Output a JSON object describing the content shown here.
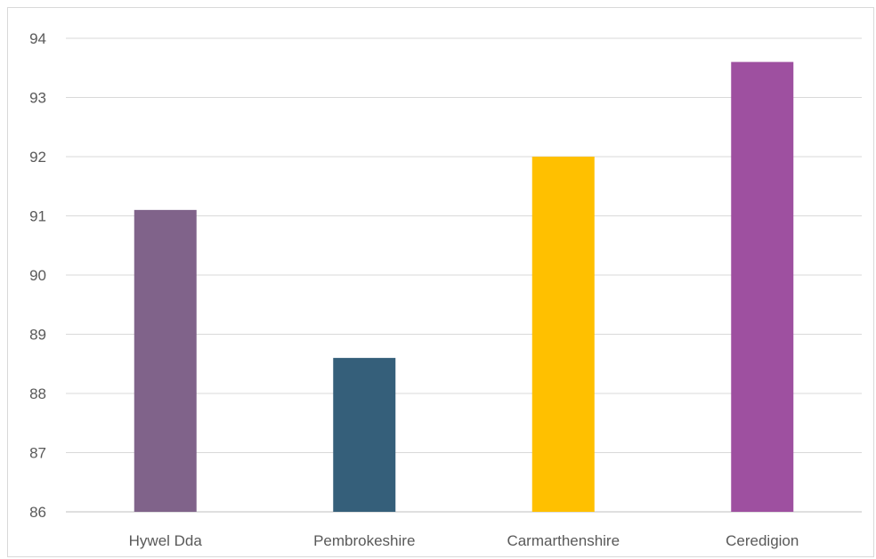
{
  "chart_data": {
    "type": "bar",
    "title": "",
    "xlabel": "",
    "ylabel": "",
    "categories": [
      "Hywel Dda",
      "Pembrokeshire",
      "Carmarthenshire",
      "Ceredigion"
    ],
    "values": [
      91.1,
      88.6,
      92.0,
      93.6
    ],
    "colors": [
      "#80638a",
      "#355f7a",
      "#ffc000",
      "#9e50a0"
    ],
    "ylim": [
      86,
      94
    ],
    "yticks": [
      86,
      87,
      88,
      89,
      90,
      91,
      92,
      93,
      94
    ],
    "grid": true,
    "gridColor": "#d9d9d9",
    "legend": "none"
  }
}
